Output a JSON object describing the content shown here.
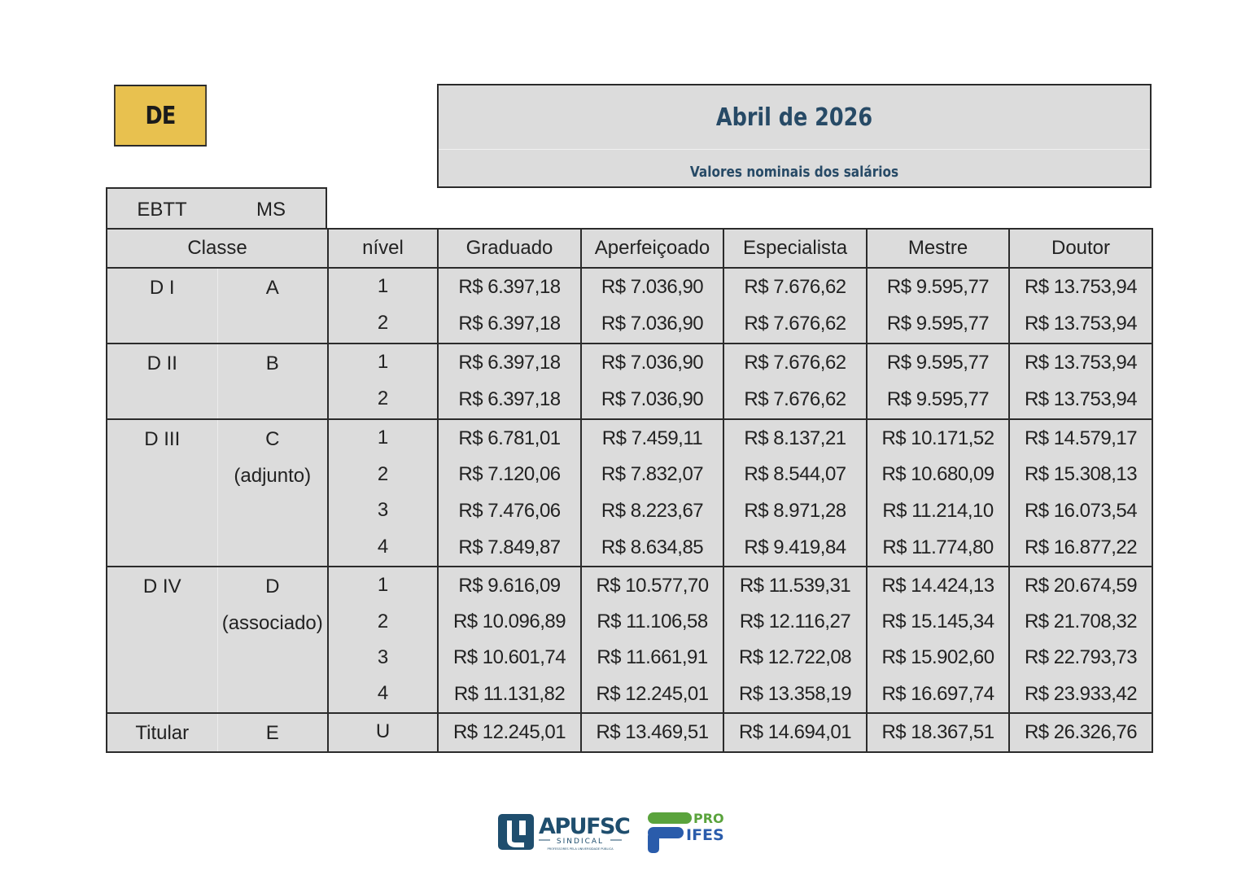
{
  "tag": "DE",
  "header": {
    "title": "Abril de 2026",
    "subtitle": "Valores nominais dos salários"
  },
  "career_labels": {
    "ebtt": "EBTT",
    "ms": "MS"
  },
  "columns": {
    "classe": "Classe",
    "nivel": "nível",
    "graduado": "Graduado",
    "aperfeicoado": "Aperfeiçoado",
    "especialista": "Especialista",
    "mestre": "Mestre",
    "doutor": "Doutor"
  },
  "rows": [
    {
      "ebtt": "D I",
      "ms": "A",
      "nivel": "1",
      "values": [
        "R$ 6.397,18",
        "R$ 7.036,90",
        "R$ 7.676,62",
        "R$ 9.595,77",
        "R$ 13.753,94"
      ]
    },
    {
      "ebtt": "",
      "ms": "",
      "nivel": "2",
      "values": [
        "R$ 6.397,18",
        "R$ 7.036,90",
        "R$ 7.676,62",
        "R$ 9.595,77",
        "R$ 13.753,94"
      ]
    },
    {
      "ebtt": "D II",
      "ms": "B",
      "nivel": "1",
      "values": [
        "R$ 6.397,18",
        "R$ 7.036,90",
        "R$ 7.676,62",
        "R$ 9.595,77",
        "R$ 13.753,94"
      ]
    },
    {
      "ebtt": "",
      "ms": "",
      "nivel": "2",
      "values": [
        "R$ 6.397,18",
        "R$ 7.036,90",
        "R$ 7.676,62",
        "R$ 9.595,77",
        "R$ 13.753,94"
      ]
    },
    {
      "ebtt": "D III",
      "ms": "C",
      "nivel": "1",
      "values": [
        "R$ 6.781,01",
        "R$ 7.459,11",
        "R$ 8.137,21",
        "R$ 10.171,52",
        "R$ 14.579,17"
      ]
    },
    {
      "ebtt": "",
      "ms": "(adjunto)",
      "nivel": "2",
      "values": [
        "R$ 7.120,06",
        "R$ 7.832,07",
        "R$ 8.544,07",
        "R$ 10.680,09",
        "R$ 15.308,13"
      ]
    },
    {
      "ebtt": "",
      "ms": "",
      "nivel": "3",
      "values": [
        "R$ 7.476,06",
        "R$ 8.223,67",
        "R$ 8.971,28",
        "R$ 11.214,10",
        "R$ 16.073,54"
      ]
    },
    {
      "ebtt": "",
      "ms": "",
      "nivel": "4",
      "values": [
        "R$ 7.849,87",
        "R$ 8.634,85",
        "R$ 9.419,84",
        "R$ 11.774,80",
        "R$ 16.877,22"
      ]
    },
    {
      "ebtt": "D IV",
      "ms": "D",
      "nivel": "1",
      "values": [
        "R$ 9.616,09",
        "R$ 10.577,70",
        "R$ 11.539,31",
        "R$ 14.424,13",
        "R$ 20.674,59"
      ]
    },
    {
      "ebtt": "",
      "ms": "(associado)",
      "nivel": "2",
      "values": [
        "R$ 10.096,89",
        "R$ 11.106,58",
        "R$ 12.116,27",
        "R$ 15.145,34",
        "R$ 21.708,32"
      ]
    },
    {
      "ebtt": "",
      "ms": "",
      "nivel": "3",
      "values": [
        "R$ 10.601,74",
        "R$ 11.661,91",
        "R$ 12.722,08",
        "R$ 15.902,60",
        "R$ 22.793,73"
      ]
    },
    {
      "ebtt": "",
      "ms": "",
      "nivel": "4",
      "values": [
        "R$ 11.131,82",
        "R$ 12.245,01",
        "R$ 13.358,19",
        "R$ 16.697,74",
        "R$ 23.933,42"
      ]
    },
    {
      "ebtt": "Titular",
      "ms": "E",
      "nivel": "U",
      "values": [
        "R$ 12.245,01",
        "R$ 13.469,51",
        "R$ 14.694,01",
        "R$ 18.367,51",
        "R$ 26.326,76"
      ]
    }
  ],
  "logos": {
    "apufsc": {
      "name": "APUFSC",
      "sub": "SINDICAL",
      "tagline": "PROFESSORES PELA UNIVERSIDADE PÚBLICA",
      "color": "#1f4e6e"
    },
    "proifes": {
      "top": "PRO",
      "bottom": "IFES",
      "green": "#5aa33c",
      "blue": "#2a5cab"
    }
  },
  "colors": {
    "tag_bg": "#e8c14f",
    "title": "#274a66",
    "cell_bg": "#dcdcdc"
  }
}
